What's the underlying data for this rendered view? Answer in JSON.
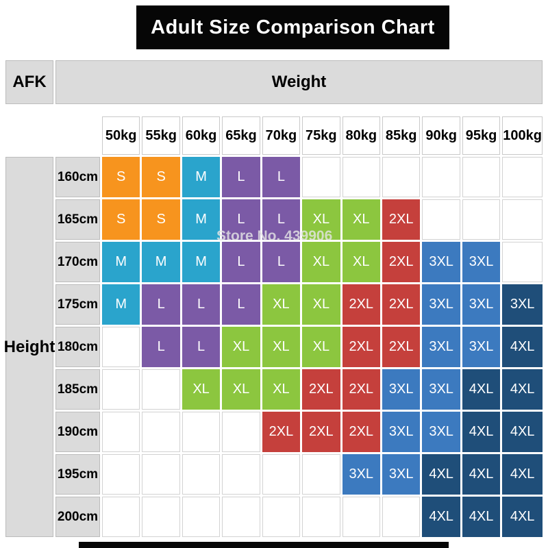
{
  "title": "Adult Size Comparison Chart",
  "labels": {
    "corner": "AFK",
    "weight_axis": "Weight",
    "height_axis": "Height"
  },
  "watermark": "Store No. 439906",
  "chart_data": {
    "type": "heatmap",
    "title": "Adult Size Comparison Chart",
    "x_axis_label": "Weight",
    "y_axis_label": "Height",
    "x_categories": [
      "50kg",
      "55kg",
      "60kg",
      "65kg",
      "70kg",
      "75kg",
      "80kg",
      "85kg",
      "90kg",
      "95kg",
      "100kg"
    ],
    "y_categories": [
      "160cm",
      "165cm",
      "170cm",
      "175cm",
      "180cm",
      "185cm",
      "190cm",
      "195cm",
      "200cm"
    ],
    "cells": [
      [
        "S",
        "S",
        "M",
        "L",
        "L",
        "",
        "",
        "",
        "",
        "",
        ""
      ],
      [
        "S",
        "S",
        "M",
        "L",
        "L",
        "XL",
        "XL",
        "2XL",
        "",
        "",
        ""
      ],
      [
        "M",
        "M",
        "M",
        "L",
        "L",
        "XL",
        "XL",
        "2XL",
        "3XL",
        "3XL",
        ""
      ],
      [
        "M",
        "L",
        "L",
        "L",
        "XL",
        "XL",
        "2XL",
        "2XL",
        "3XL",
        "3XL",
        "3XL"
      ],
      [
        "",
        "L",
        "L",
        "XL",
        "XL",
        "XL",
        "2XL",
        "2XL",
        "3XL",
        "3XL",
        "4XL"
      ],
      [
        "",
        "",
        "XL",
        "XL",
        "XL",
        "2XL",
        "2XL",
        "3XL",
        "3XL",
        "4XL",
        "4XL"
      ],
      [
        "",
        "",
        "",
        "",
        "2XL",
        "2XL",
        "2XL",
        "3XL",
        "3XL",
        "4XL",
        "4XL"
      ],
      [
        "",
        "",
        "",
        "",
        "",
        "",
        "3XL",
        "3XL",
        "4XL",
        "4XL",
        "4XL"
      ],
      [
        "",
        "",
        "",
        "",
        "",
        "",
        "",
        "",
        "4XL",
        "4XL",
        "4XL"
      ]
    ],
    "size_colors": {
      "S": "#F7941E",
      "M": "#2AA4CC",
      "L": "#7B5AA6",
      "XL": "#8CC63F",
      "2XL": "#C5403C",
      "3XL": "#3C7ABF",
      "4XL": "#1F4E79"
    },
    "color_overrides": [
      {
        "row": 3,
        "col": 10,
        "color": "#1F4E79"
      }
    ]
  }
}
